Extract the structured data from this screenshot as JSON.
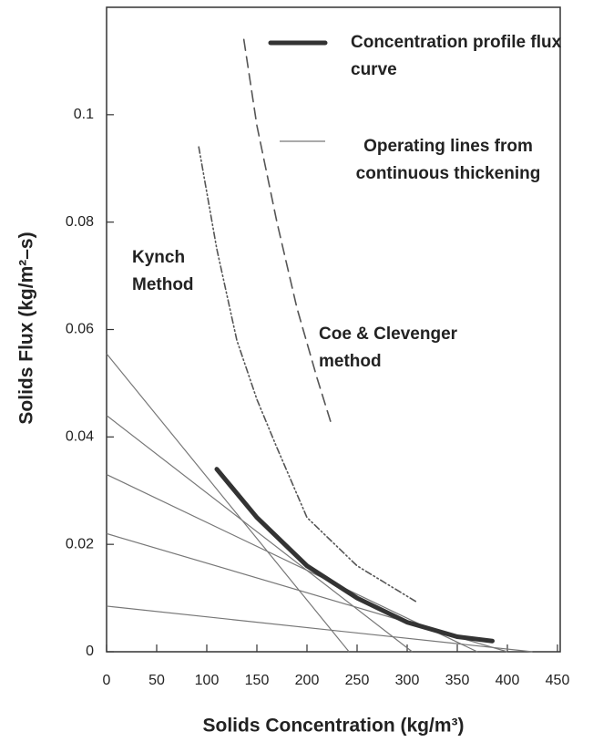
{
  "chart_data": {
    "type": "line",
    "x_label": "Solids Concentration (kg/m³)",
    "y_label": "Solids Flux (kg/m²–s)",
    "xlim": [
      0,
      450
    ],
    "xticks": [
      0,
      50,
      100,
      150,
      200,
      250,
      300,
      350,
      400,
      450
    ],
    "ylim": [
      0,
      0.12
    ],
    "yticks": [
      0,
      0.02,
      0.04,
      0.06,
      0.08,
      0.1
    ],
    "series": [
      {
        "name": "Concentration profile flux curve",
        "color": "#333333",
        "style": "solid",
        "x": [
          110,
          150,
          200,
          250,
          300,
          350,
          385
        ],
        "values": [
          0.034,
          0.025,
          0.016,
          0.01,
          0.0055,
          0.0028,
          0.002
        ]
      },
      {
        "name": "Kynch Method",
        "color": "#555555",
        "style": "dash-dot-dot",
        "x": [
          92,
          110,
          130,
          150,
          170,
          200,
          250,
          310
        ],
        "values": [
          0.094,
          0.075,
          0.058,
          0.047,
          0.038,
          0.025,
          0.016,
          0.0092
        ]
      },
      {
        "name": "Coe & Clevenger method",
        "color": "#555555",
        "style": "dashed",
        "x": [
          137,
          150,
          170,
          190,
          210,
          225
        ],
        "values": [
          0.114,
          0.098,
          0.08,
          0.064,
          0.051,
          0.042
        ]
      }
    ],
    "operating_lines": {
      "name": "Operating lines from continuous thickening",
      "color": "#777777",
      "lines": [
        {
          "x": [
            0,
            242
          ],
          "values": [
            0.0555,
            0
          ]
        },
        {
          "x": [
            0,
            305
          ],
          "values": [
            0.044,
            0
          ]
        },
        {
          "x": [
            0,
            370
          ],
          "values": [
            0.033,
            0
          ]
        },
        {
          "x": [
            0,
            400
          ],
          "values": [
            0.022,
            0
          ]
        },
        {
          "x": [
            0,
            425
          ],
          "values": [
            0.0085,
            0
          ]
        }
      ]
    }
  }
}
